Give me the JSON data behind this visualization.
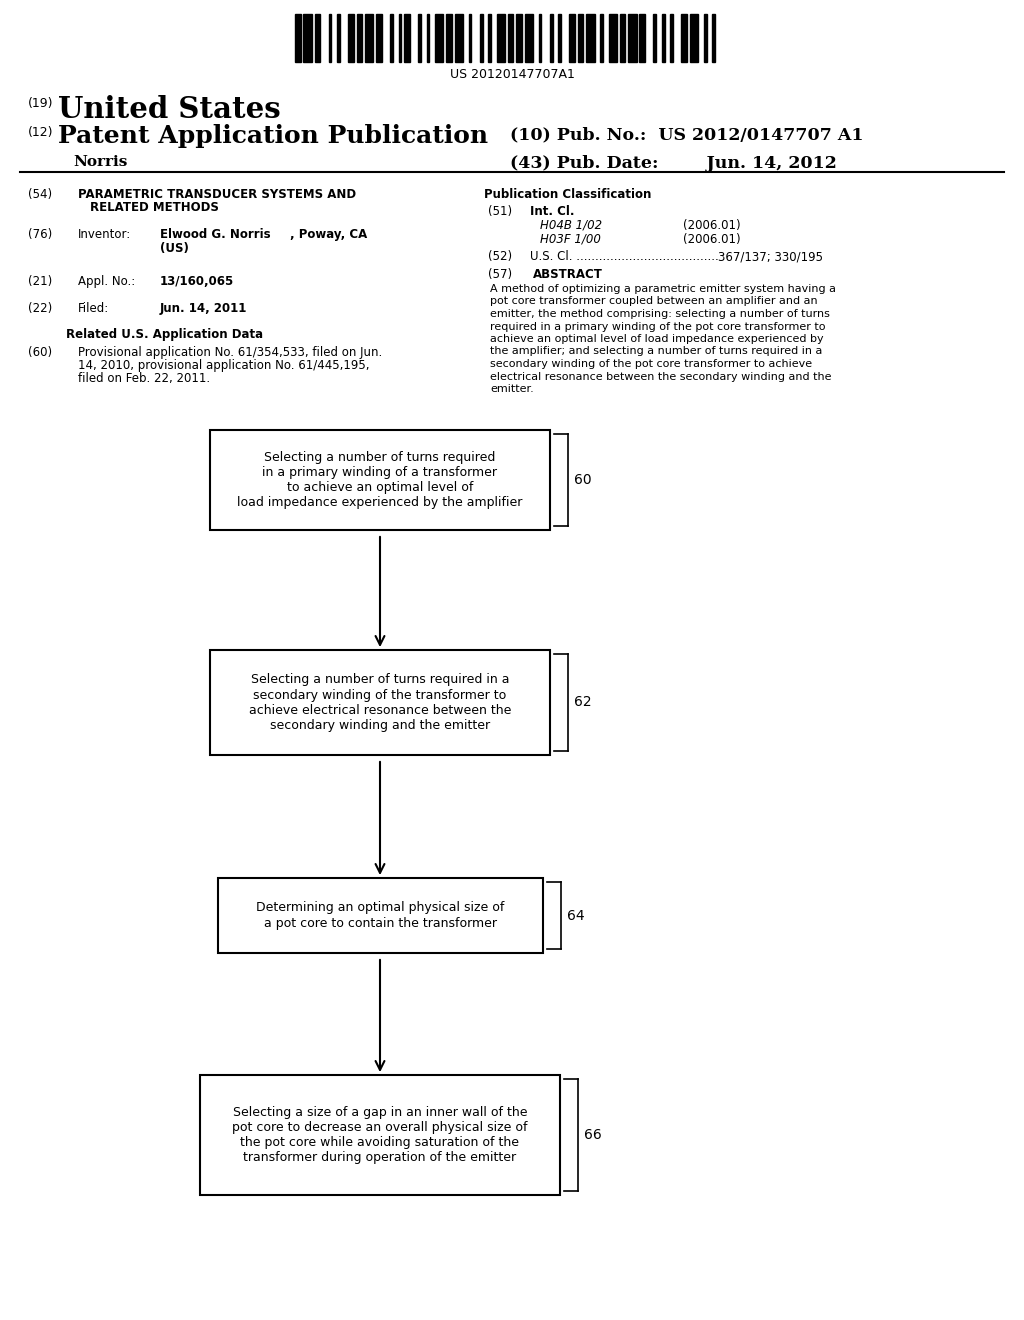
{
  "background_color": "#ffffff",
  "barcode_text": "US 20120147707A1",
  "box1_text_lines": [
    "Selecting a number of turns required",
    "in a primary winding of a transformer",
    "to achieve an optimal level of",
    "load impedance experienced by the amplifier"
  ],
  "box1_label": "60",
  "box2_text_lines": [
    "Selecting a number of turns required in a",
    "secondary winding of the transformer to",
    "achieve electrical resonance between the",
    "secondary winding and the emitter"
  ],
  "box2_label": "62",
  "box3_text_lines": [
    "Determining an optimal physical size of",
    "a pot core to contain the transformer"
  ],
  "box3_label": "64",
  "box4_text_lines": [
    "Selecting a size of a gap in an inner wall of the",
    "pot core to decrease an overall physical size of",
    "the pot core while avoiding saturation of the",
    "transformer during operation of the emitter"
  ],
  "box4_label": "66",
  "abstract_lines": [
    "A method of optimizing a parametric emitter system having a",
    "pot core transformer coupled between an amplifier and an",
    "emitter, the method comprising: selecting a number of turns",
    "required in a primary winding of the pot core transformer to",
    "achieve an optimal level of load impedance experienced by",
    "the amplifier; and selecting a number of turns required in a",
    "secondary winding of the pot core transformer to achieve",
    "electrical resonance between the secondary winding and the",
    "emitter."
  ]
}
